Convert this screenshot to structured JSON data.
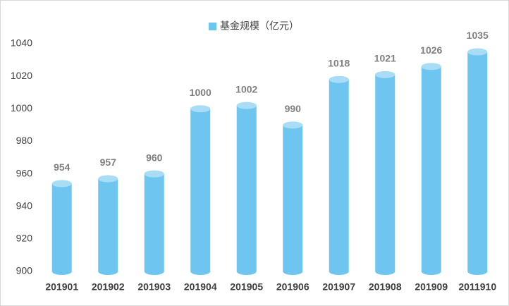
{
  "chart_data": {
    "type": "bar",
    "legend_position": "top",
    "series": [
      {
        "name": "基金规模（亿元）",
        "color": "#6ec6f0",
        "values": [
          954,
          957,
          960,
          1000,
          1002,
          990,
          1018,
          1021,
          1026,
          1035
        ]
      }
    ],
    "categories": [
      "201901",
      "201902",
      "201903",
      "201904",
      "201905",
      "201906",
      "201907",
      "201908",
      "201909",
      "2011910"
    ],
    "ylim": [
      900,
      1040
    ],
    "yticks": [
      900,
      920,
      940,
      960,
      980,
      1000,
      1020,
      1040
    ],
    "grid": false
  }
}
